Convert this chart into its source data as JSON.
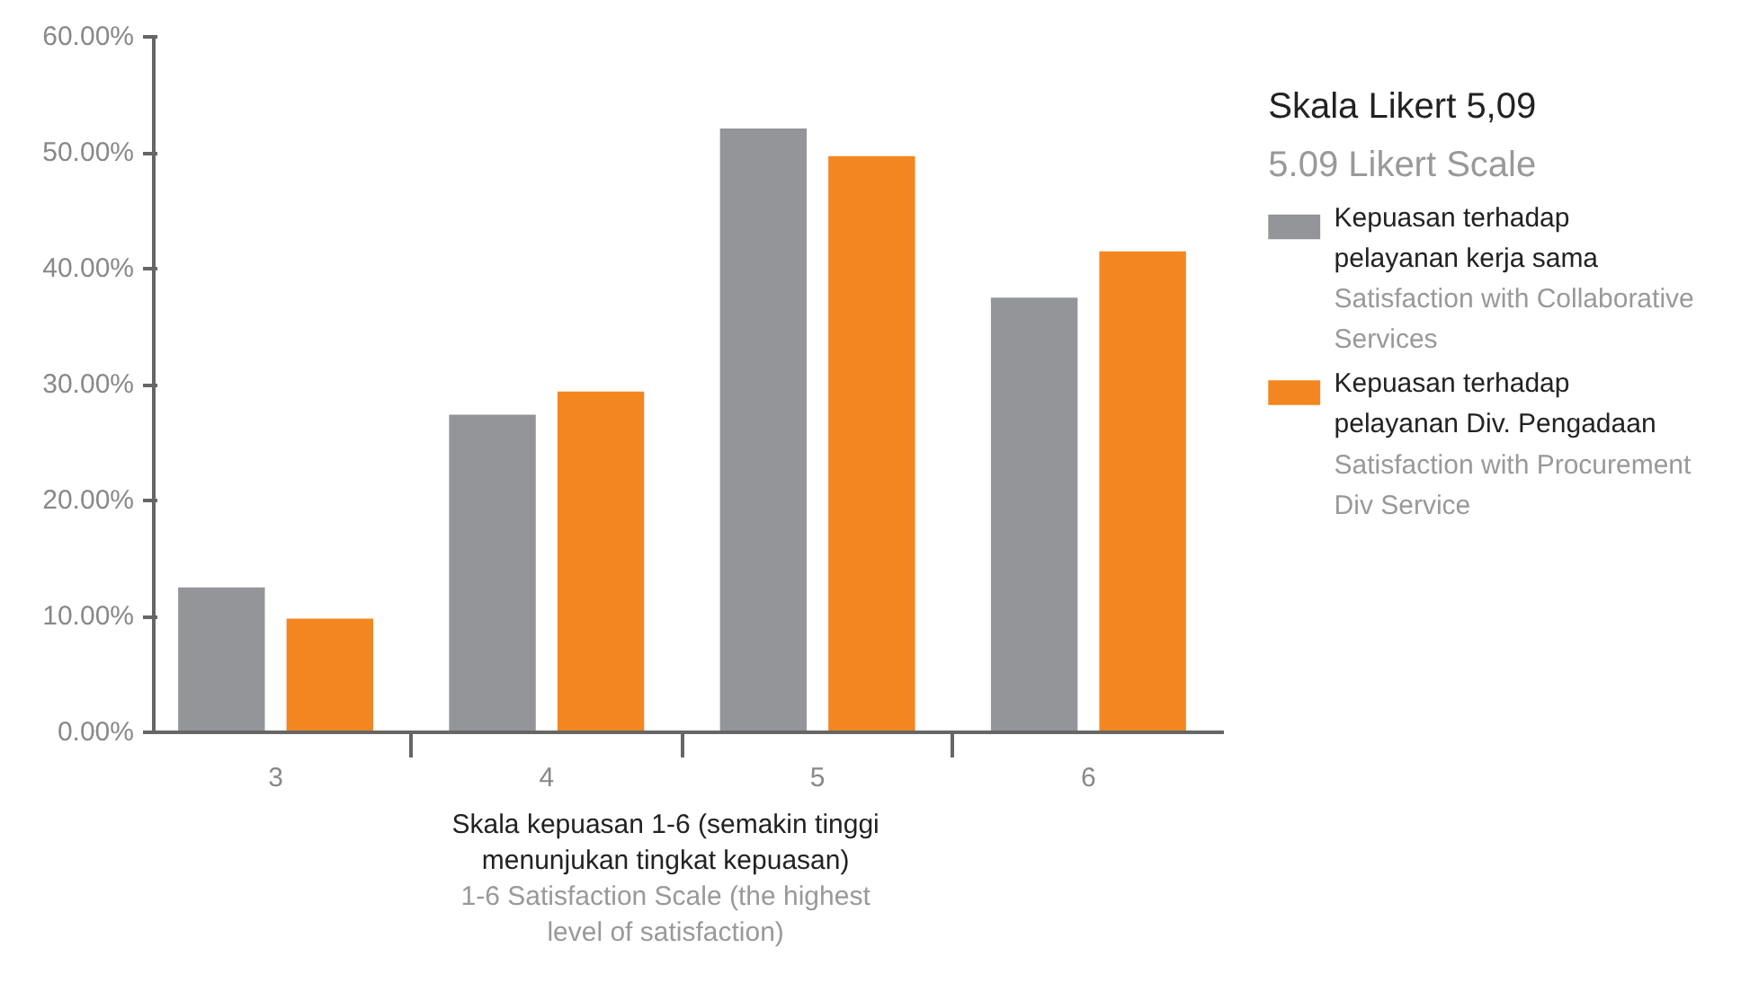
{
  "chart_data": {
    "type": "bar",
    "categories": [
      "3",
      "4",
      "5",
      "6"
    ],
    "series": [
      {
        "name": "Kepuasan terhadap pelayanan kerja sama\nSatisfaction with Collaborative Services",
        "color": "#939598",
        "values": [
          12.5,
          27.4,
          52.1,
          37.5
        ]
      },
      {
        "name": "Kepuasan terhadap pelayanan Div. Pengadaan\nSatisfaction with Procurement Div Service",
        "color": "#f38620",
        "values": [
          9.8,
          29.4,
          49.7,
          41.5
        ]
      }
    ],
    "xlabel": "Skala kepuasan 1-6 (semakin tinggi menunjukan tingkat kepuasan)\n1-6 Satisfaction Scale (the highest level of satisfaction)",
    "legend_title": "Skala Likert 5,09\n5.09 Likert Scale",
    "ylim": [
      0,
      60
    ],
    "yticks": [
      {
        "value": 0,
        "label": "0.00%"
      },
      {
        "value": 10,
        "label": "10.00%"
      },
      {
        "value": 20,
        "label": "20.00%"
      },
      {
        "value": 30,
        "label": "30.00%"
      },
      {
        "value": 40,
        "label": "40.00%"
      },
      {
        "value": 50,
        "label": "50.00%"
      },
      {
        "value": 60,
        "label": "60.00%"
      }
    ],
    "grid": false,
    "legend": "right"
  }
}
